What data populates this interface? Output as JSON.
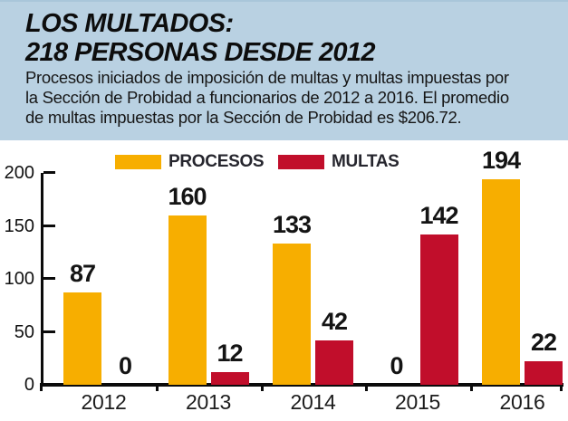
{
  "header": {
    "title_line1": "LOS MULTADOS:",
    "title_line2": "218 PERSONAS DESDE 2012",
    "subtitle_lines": [
      "Procesos iniciados de imposición de multas y multas impuestas por",
      "la Sección de Probidad a funcionarios de 2012 a 2016. El promedio",
      "de multas impuestas por la Sección de Probidad es $206.72."
    ]
  },
  "chart_data": {
    "type": "bar",
    "categories": [
      "2012",
      "2013",
      "2014",
      "2015",
      "2016"
    ],
    "series": [
      {
        "name": "PROCESOS",
        "color": "#f7ae00",
        "values": [
          87,
          160,
          133,
          0,
          194
        ]
      },
      {
        "name": "MULTAS",
        "color": "#c10e2b",
        "values": [
          0,
          12,
          42,
          142,
          22
        ]
      }
    ],
    "ylim": [
      0,
      200
    ],
    "yticks": [
      0,
      50,
      100,
      150,
      200
    ],
    "grid": false,
    "legend_position": "top",
    "value_labels": true
  },
  "colors": {
    "header_bg": "#b9d1e2",
    "header_top_edge": "#a9c6da",
    "axis": "#0b0b0b",
    "text": "#141414"
  }
}
